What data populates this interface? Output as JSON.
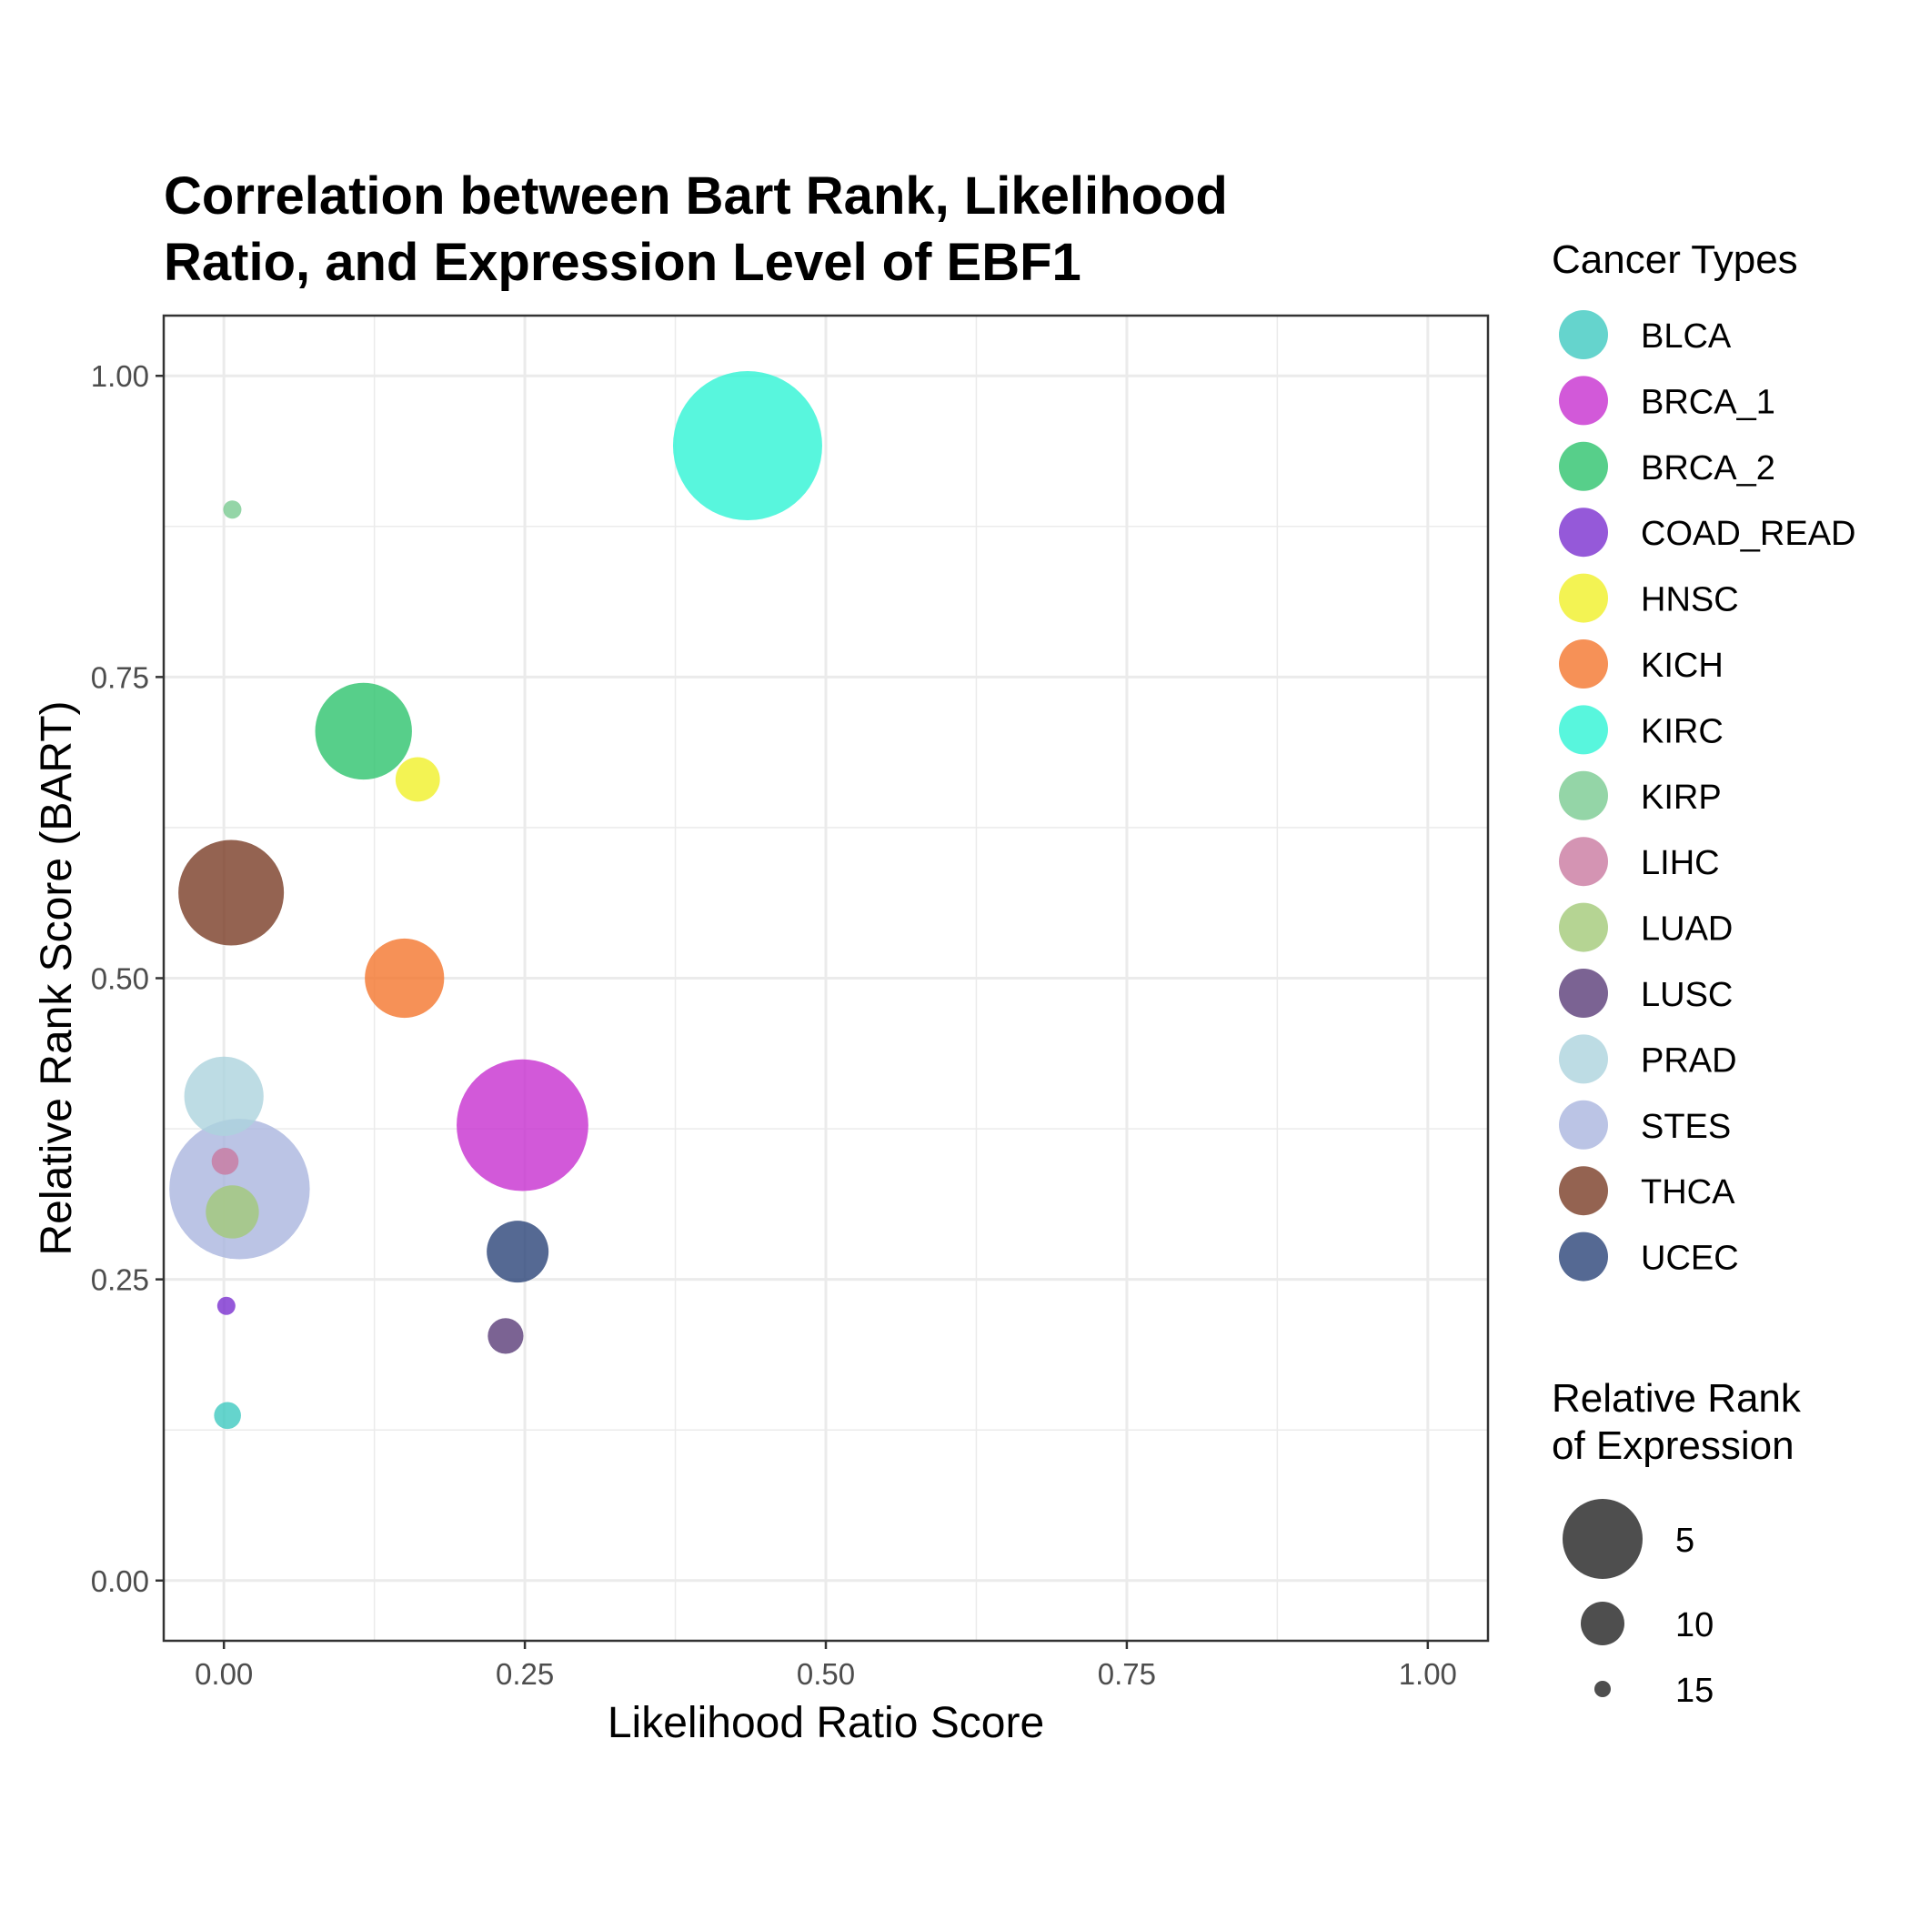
{
  "chart_data": {
    "type": "scatter",
    "title_lines": [
      "Correlation between Bart Rank, Likelihood",
      "Ratio, and Expression Level of EBF1"
    ],
    "xlabel": "Likelihood Ratio Score",
    "ylabel": "Relative Rank Score (BART)",
    "xlim": [
      -0.05,
      1.05
    ],
    "ylim": [
      -0.05,
      1.05
    ],
    "x_ticks": [
      0,
      0.25,
      0.5,
      0.75,
      1
    ],
    "x_tick_labels": [
      "0.00",
      "0.25",
      "0.50",
      "0.75",
      "1.00"
    ],
    "y_ticks": [
      0,
      0.25,
      0.5,
      0.75,
      1
    ],
    "y_tick_labels": [
      "0.00",
      "0.25",
      "0.50",
      "0.75",
      "1.00"
    ],
    "grid": true,
    "color_legend": {
      "title": "Cancer Types",
      "position": "right"
    },
    "size_legend": {
      "title_lines": [
        "Relative Rank",
        "of Expression"
      ],
      "position": "right",
      "entries": [
        {
          "label": "5",
          "value": 5
        },
        {
          "label": "10",
          "value": 10
        },
        {
          "label": "15",
          "value": 15
        }
      ],
      "point_color": "#222222"
    },
    "series": [
      {
        "name": "BLCA",
        "color": "#3ec9c1",
        "x": 0.003,
        "y": 0.137,
        "size": 15
      },
      {
        "name": "BRCA_1",
        "color": "#c730cf",
        "x": 0.248,
        "y": 0.378,
        "size": 3
      },
      {
        "name": "BRCA_2",
        "color": "#2dc36d",
        "x": 0.116,
        "y": 0.705,
        "size": 7
      },
      {
        "name": "COAD_READ",
        "color": "#7a2fd0",
        "x": 0.002,
        "y": 0.228,
        "size": 16
      },
      {
        "name": "HNSC",
        "color": "#f0f028",
        "x": 0.161,
        "y": 0.665,
        "size": 13
      },
      {
        "name": "KICH",
        "color": "#f4752d",
        "x": 0.15,
        "y": 0.5,
        "size": 9
      },
      {
        "name": "KIRC",
        "color": "#2ef4d4",
        "x": 0.435,
        "y": 0.942,
        "size": 1
      },
      {
        "name": "KIRP",
        "color": "#79cb91",
        "x": 0.007,
        "y": 0.889,
        "size": 16
      },
      {
        "name": "LIHC",
        "color": "#c979a0",
        "x": 0.001,
        "y": 0.348,
        "size": 15
      },
      {
        "name": "LUAD",
        "color": "#a3c978",
        "x": 0.007,
        "y": 0.306,
        "size": 12
      },
      {
        "name": "LUSC",
        "color": "#5a3c78",
        "x": 0.234,
        "y": 0.203,
        "size": 14
      },
      {
        "name": "PRAD",
        "color": "#add3dd",
        "x": 0.0,
        "y": 0.402,
        "size": 9
      },
      {
        "name": "STES",
        "color": "#aab5df",
        "x": 0.013,
        "y": 0.325,
        "size": 2
      },
      {
        "name": "THCA",
        "color": "#793c25",
        "x": 0.006,
        "y": 0.571,
        "size": 6
      },
      {
        "name": "UCEC",
        "color": "#2a4478",
        "x": 0.244,
        "y": 0.273,
        "size": 11
      }
    ]
  }
}
